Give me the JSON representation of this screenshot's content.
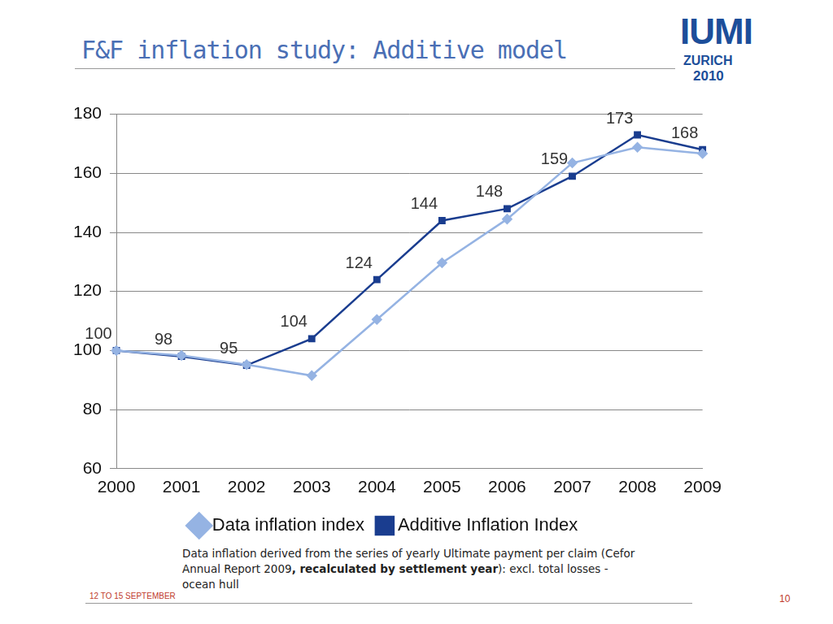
{
  "slide": {
    "title": "F&F inflation study: Additive model",
    "logo": [
      "IUMI",
      "ZURICH",
      "2010"
    ],
    "note": [
      "Data inflation derived from the series of yearly Ultimate payment per claim (Cefor Annual Report 2009",
      ", recalculated by settlement year",
      "): excl. total losses - ocean hull"
    ],
    "footer": "12 TO 15 SEPTEMBER",
    "page_number": "10"
  },
  "chart_data": {
    "type": "line",
    "categories": [
      "2000",
      "2001",
      "2002",
      "2003",
      "2004",
      "2005",
      "2006",
      "2007",
      "2008",
      "2009"
    ],
    "series": [
      {
        "name": "Data inflation index",
        "color": "#95b3e3",
        "marker": "diamond",
        "line_style": "solid",
        "values": [
          100,
          98.3,
          95.2,
          91.5,
          110.5,
          129.7,
          144.5,
          163.5,
          168.8,
          166.7
        ]
      },
      {
        "name": "Additive Inflation Index",
        "color": "#1a3d8f",
        "marker": "square",
        "line_style": "solid",
        "data_labels": true,
        "values": [
          100,
          98,
          95,
          104,
          124,
          144,
          148,
          159,
          173,
          168
        ]
      }
    ],
    "ylim": [
      60,
      180
    ],
    "yticks": [
      60,
      80,
      100,
      120,
      140,
      160,
      180
    ],
    "grid": true,
    "legend": "bottom"
  }
}
